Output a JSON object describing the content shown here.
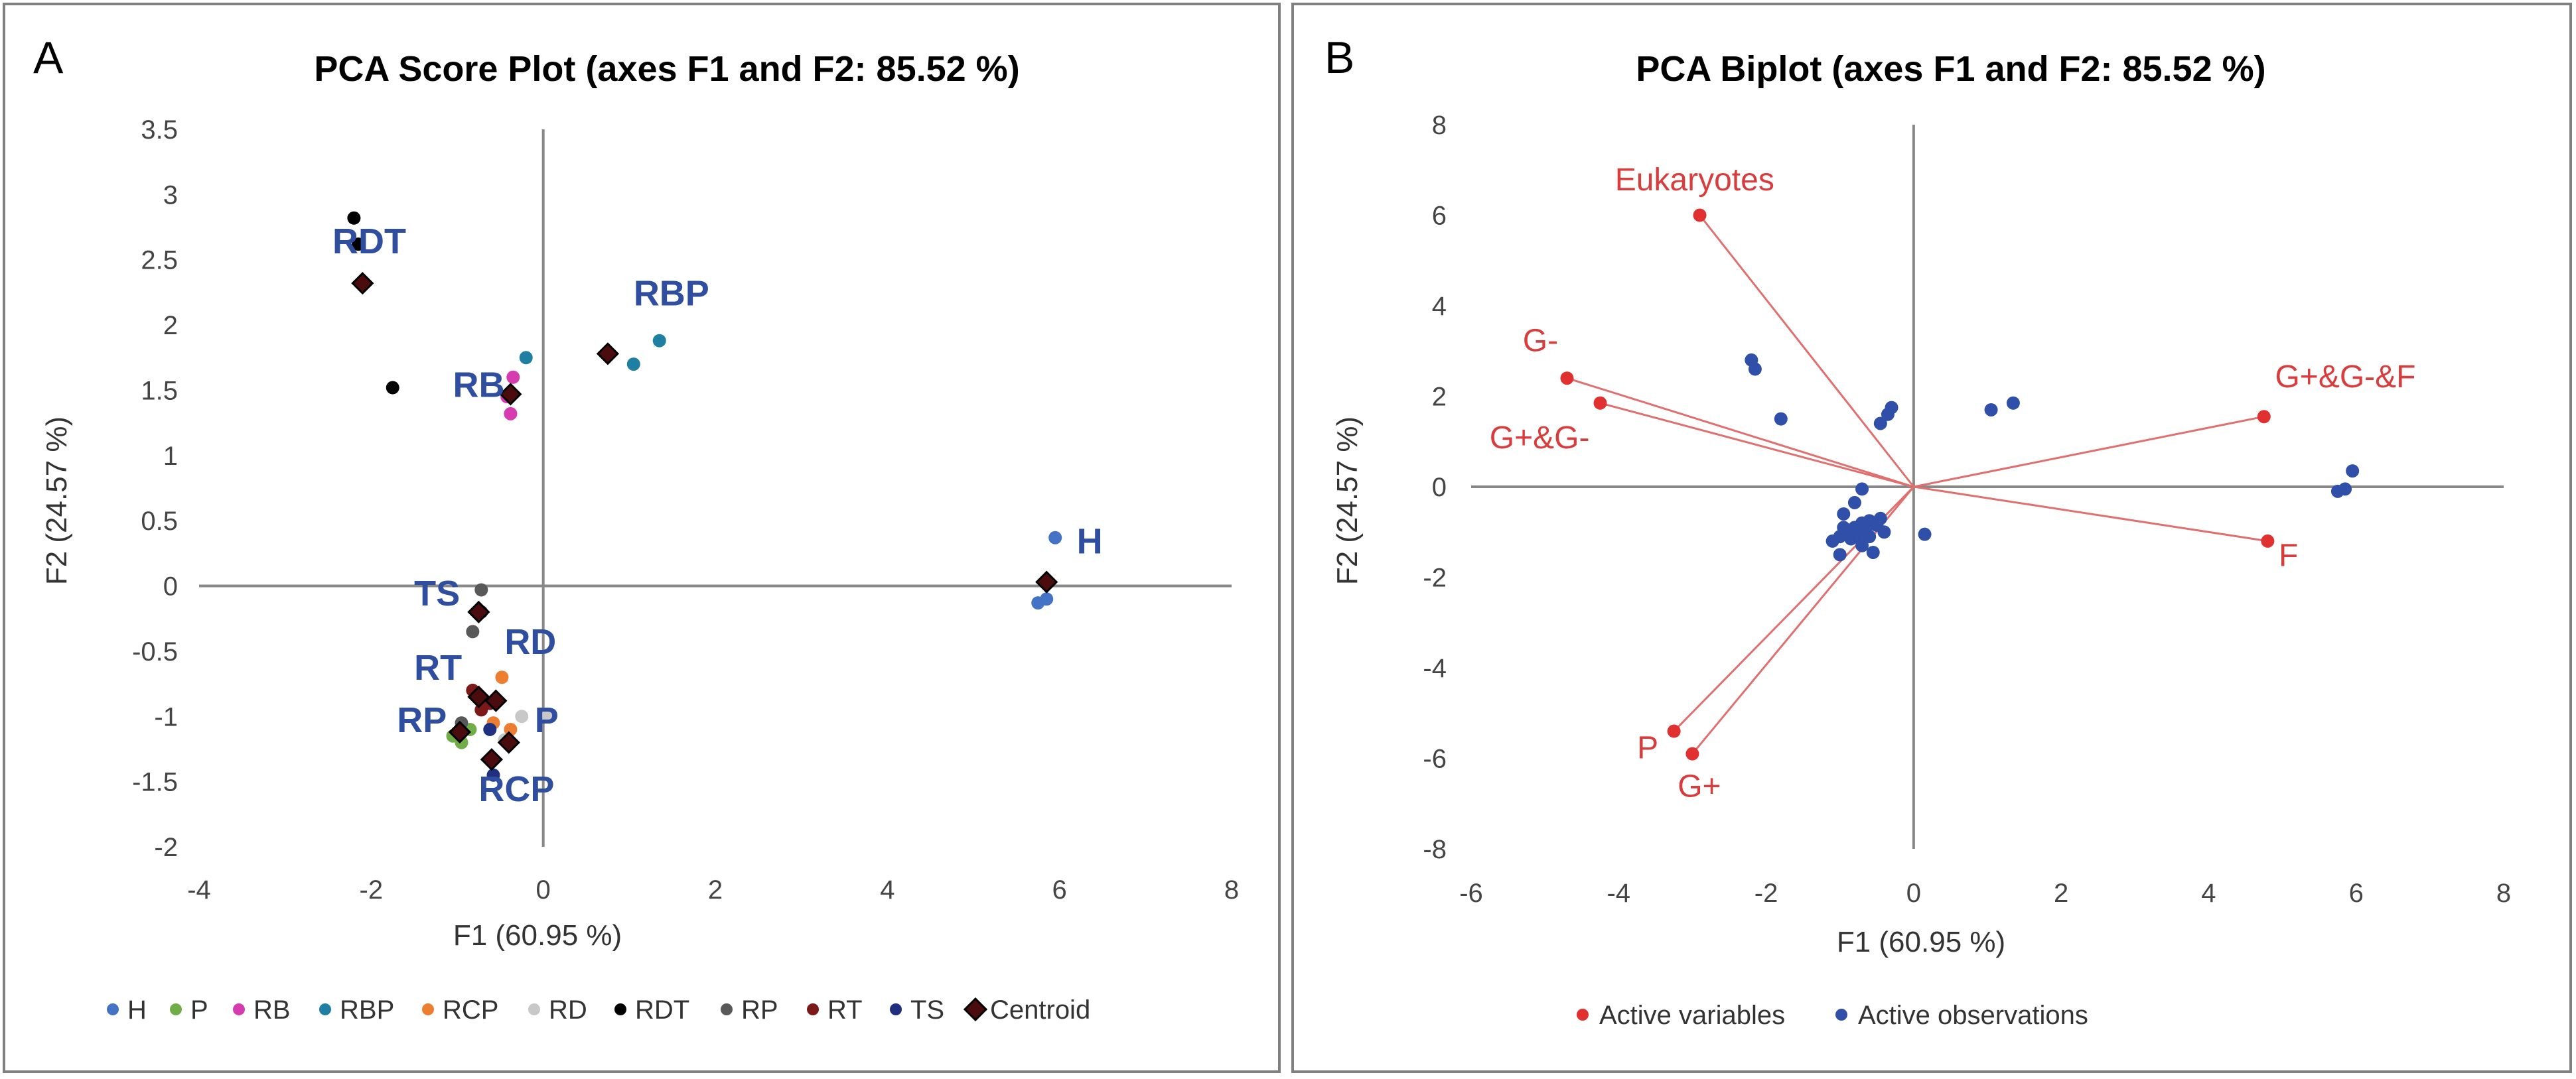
{
  "panels": [
    {
      "letter": "A",
      "title": "PCA Score Plot (axes F1 and F2: 85.52 %)",
      "xlabel": "F1 (60.95 %)",
      "ylabel": "F2 (24.57 %)",
      "xticks": [
        "-4",
        "-2",
        "0",
        "2",
        "4",
        "6",
        "8"
      ],
      "yticks": [
        "3.5",
        "3",
        "2.5",
        "2",
        "1.5",
        "1",
        "0.5",
        "0",
        "-0.5",
        "-1",
        "-1.5",
        "-2"
      ]
    },
    {
      "letter": "B",
      "title": "PCA Biplot (axes F1 and F2: 85.52 %)",
      "xlabel": "F1 (60.95 %)",
      "ylabel": "F2 (24.57 %)",
      "xticks": [
        "-6",
        "-4",
        "-2",
        "0",
        "2",
        "4",
        "6",
        "8"
      ],
      "yticks": [
        "8",
        "6",
        "4",
        "2",
        "0",
        "-2",
        "-4",
        "-6",
        "-8"
      ]
    }
  ],
  "chart_data": [
    {
      "type": "scatter",
      "title": "PCA Score Plot (axes F1 and F2: 85.52 %)",
      "xlabel": "F1 (60.95 %)",
      "ylabel": "F2 (24.57 %)",
      "xlim": [
        -4,
        8
      ],
      "ylim": [
        -2,
        3.5
      ],
      "legend_position": "bottom",
      "series": [
        {
          "name": "H",
          "color": "#4472c4",
          "points": [
            [
              5.95,
              0.37
            ],
            [
              5.75,
              -0.13
            ],
            [
              5.85,
              -0.1
            ]
          ]
        },
        {
          "name": "P",
          "color": "#70ad47",
          "points": [
            [
              -0.95,
              -1.2
            ],
            [
              -1.05,
              -1.15
            ],
            [
              -0.85,
              -1.1
            ]
          ]
        },
        {
          "name": "RB",
          "color": "#d63cb0",
          "points": [
            [
              -0.35,
              1.6
            ],
            [
              -0.42,
              1.45
            ],
            [
              -0.38,
              1.32
            ]
          ]
        },
        {
          "name": "RBP",
          "color": "#1f7fa3",
          "points": [
            [
              -0.2,
              1.75
            ],
            [
              1.35,
              1.88
            ],
            [
              1.05,
              1.7
            ]
          ]
        },
        {
          "name": "RCP",
          "color": "#ed7d31",
          "points": [
            [
              -0.48,
              -0.7
            ],
            [
              -0.58,
              -1.05
            ],
            [
              -0.38,
              -1.1
            ]
          ]
        },
        {
          "name": "RD",
          "color": "#c8c8c8",
          "points": [
            [
              -0.25,
              -1.0
            ],
            [
              0.05,
              -1.0
            ],
            [
              -0.45,
              -1.18
            ]
          ]
        },
        {
          "name": "RDT",
          "color": "#000000",
          "points": [
            [
              -2.2,
              2.82
            ],
            [
              -2.15,
              2.62
            ],
            [
              -1.75,
              1.52
            ]
          ]
        },
        {
          "name": "RP",
          "color": "#595959",
          "points": [
            [
              -0.72,
              -0.03
            ],
            [
              -0.82,
              -0.35
            ],
            [
              -0.95,
              -1.05
            ]
          ]
        },
        {
          "name": "RT",
          "color": "#7b1818",
          "points": [
            [
              -0.82,
              -0.8
            ],
            [
              -0.62,
              -0.9
            ],
            [
              -0.72,
              -0.95
            ]
          ]
        },
        {
          "name": "TS",
          "color": "#203080",
          "points": [
            [
              -0.72,
              -0.2
            ],
            [
              -0.62,
              -1.1
            ],
            [
              -0.58,
              -1.45
            ]
          ]
        }
      ],
      "centroids": {
        "name": "Centroid",
        "color": "#4a0c0c",
        "points": [
          [
            5.85,
            0.03
          ],
          [
            -2.1,
            2.32
          ],
          [
            0.75,
            1.78
          ],
          [
            -0.38,
            1.47
          ],
          [
            -0.75,
            -0.2
          ],
          [
            -0.75,
            -0.85
          ],
          [
            -0.55,
            -0.88
          ],
          [
            -0.97,
            -1.12
          ],
          [
            -0.6,
            -1.33
          ],
          [
            -0.4,
            -1.2
          ]
        ]
      },
      "group_labels": [
        {
          "text": "RDT",
          "x": -2.45,
          "y": 2.55
        },
        {
          "text": "RBP",
          "x": 1.05,
          "y": 2.15
        },
        {
          "text": "RB",
          "x": -1.05,
          "y": 1.45
        },
        {
          "text": "H",
          "x": 6.2,
          "y": 0.25
        },
        {
          "text": "TS",
          "x": -1.5,
          "y": -0.15
        },
        {
          "text": "RD",
          "x": -0.45,
          "y": -0.52
        },
        {
          "text": "RT",
          "x": -1.5,
          "y": -0.72
        },
        {
          "text": "RP",
          "x": -1.7,
          "y": -1.12
        },
        {
          "text": "P",
          "x": -0.1,
          "y": -1.12
        },
        {
          "text": "RCP",
          "x": -0.75,
          "y": -1.65
        }
      ]
    },
    {
      "type": "scatter",
      "title": "PCA Biplot (axes F1 and F2: 85.52 %)",
      "xlabel": "F1 (60.95 %)",
      "ylabel": "F2 (24.57 %)",
      "xlim": [
        -6,
        8
      ],
      "ylim": [
        -8,
        8
      ],
      "legend_position": "bottom",
      "variables": {
        "name": "Active variables",
        "color": "#e03030",
        "items": [
          {
            "label": "Eukaryotes",
            "x": -2.9,
            "y": 6.0,
            "label_x": -4.05,
            "label_y": 6.55
          },
          {
            "label": "G-",
            "x": -4.7,
            "y": 2.4,
            "label_x": -5.3,
            "label_y": 3.0
          },
          {
            "label": "G+&G-",
            "x": -4.25,
            "y": 1.85,
            "label_x": -5.75,
            "label_y": 0.85
          },
          {
            "label": "G+&G-&F",
            "x": 4.75,
            "y": 1.55,
            "label_x": 4.9,
            "label_y": 2.2
          },
          {
            "label": "F",
            "x": 4.8,
            "y": -1.2,
            "label_x": 4.95,
            "label_y": -1.75
          },
          {
            "label": "P",
            "x": -3.25,
            "y": -5.4,
            "label_x": -3.75,
            "label_y": -6.0
          },
          {
            "label": "G+",
            "x": -3.0,
            "y": -5.9,
            "label_x": -3.2,
            "label_y": -6.85
          }
        ]
      },
      "observations": {
        "name": "Active observations",
        "color": "#2f4fa8",
        "points": [
          [
            -2.2,
            2.8
          ],
          [
            -2.15,
            2.6
          ],
          [
            -1.8,
            1.5
          ],
          [
            -0.35,
            1.6
          ],
          [
            -0.45,
            1.4
          ],
          [
            -0.3,
            1.75
          ],
          [
            1.05,
            1.7
          ],
          [
            1.35,
            1.85
          ],
          [
            5.75,
            -0.1
          ],
          [
            5.85,
            -0.05
          ],
          [
            5.95,
            0.35
          ],
          [
            -0.7,
            -0.05
          ],
          [
            -0.8,
            -0.35
          ],
          [
            -0.95,
            -0.6
          ],
          [
            -1.1,
            -1.2
          ],
          [
            -1.0,
            -1.1
          ],
          [
            -0.9,
            -1.0
          ],
          [
            -0.8,
            -0.9
          ],
          [
            -0.7,
            -0.8
          ],
          [
            -0.6,
            -0.75
          ],
          [
            -0.5,
            -0.85
          ],
          [
            -0.4,
            -1.0
          ],
          [
            -0.6,
            -1.1
          ],
          [
            -0.7,
            -1.3
          ],
          [
            -0.55,
            -1.45
          ],
          [
            -0.85,
            -1.15
          ],
          [
            -1.0,
            -1.5
          ],
          [
            0.15,
            -1.05
          ],
          [
            -0.65,
            -1.0
          ],
          [
            -0.45,
            -0.7
          ],
          [
            -0.75,
            -1.05
          ],
          [
            -0.95,
            -0.9
          ]
        ]
      }
    }
  ],
  "legend_a": [
    "H",
    "P",
    "RB",
    "RBP",
    "RCP",
    "RD",
    "RDT",
    "RP",
    "RT",
    "TS",
    "Centroid"
  ],
  "legend_b": [
    "Active variables",
    "Active observations"
  ]
}
